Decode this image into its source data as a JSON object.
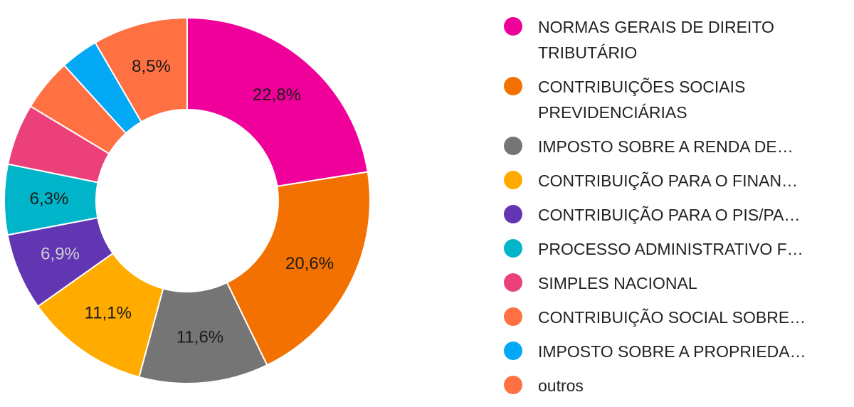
{
  "chart_data": {
    "type": "pie",
    "title": "",
    "donut": true,
    "legend_position": "right",
    "slices": [
      {
        "label": "NORMAS GERAIS DE DIREITO TRIBUTÁRIO",
        "value": 22.8,
        "value_label": "22,8%",
        "color": "#f0009b",
        "label_color": "#1a1a1a"
      },
      {
        "label": "CONTRIBUIÇÕES SOCIAIS PREVIDENCIÁRIAS",
        "value": 20.6,
        "value_label": "20,6%",
        "color": "#f37100",
        "label_color": "#1a1a1a"
      },
      {
        "label": "IMPOSTO SOBRE A RENDA DE…",
        "value": 11.6,
        "value_label": "11,6%",
        "color": "#757575",
        "label_color": "#1a1a1a"
      },
      {
        "label": "CONTRIBUIÇÃO PARA O FINAN…",
        "value": 11.1,
        "value_label": "11,1%",
        "color": "#ffab00",
        "label_color": "#1a1a1a"
      },
      {
        "label": "CONTRIBUIÇÃO PARA O PIS/PA…",
        "value": 6.9,
        "value_label": "6,9%",
        "color": "#6235b3",
        "label_color": "#d0d0d0"
      },
      {
        "label": "PROCESSO ADMINISTRATIVO F…",
        "value": 6.3,
        "value_label": "6,3%",
        "color": "#00b5c9",
        "label_color": "#1a1a1a"
      },
      {
        "label": "SIMPLES NACIONAL",
        "value": 5.5,
        "value_label": "",
        "color": "#ec407a",
        "label_color": "#1a1a1a"
      },
      {
        "label": "CONTRIBUIÇÃO SOCIAL SOBRE…",
        "value": 4.7,
        "value_label": "",
        "color": "#ff7043",
        "label_color": "#1a1a1a"
      },
      {
        "label": "IMPOSTO SOBRE A PROPRIEDA…",
        "value": 3.4,
        "value_label": "",
        "color": "#03a9f4",
        "label_color": "#1a1a1a"
      },
      {
        "label": "outros",
        "value": 8.5,
        "value_label": "8,5%",
        "color": "#ff7043",
        "label_color": "#1a1a1a"
      }
    ]
  }
}
